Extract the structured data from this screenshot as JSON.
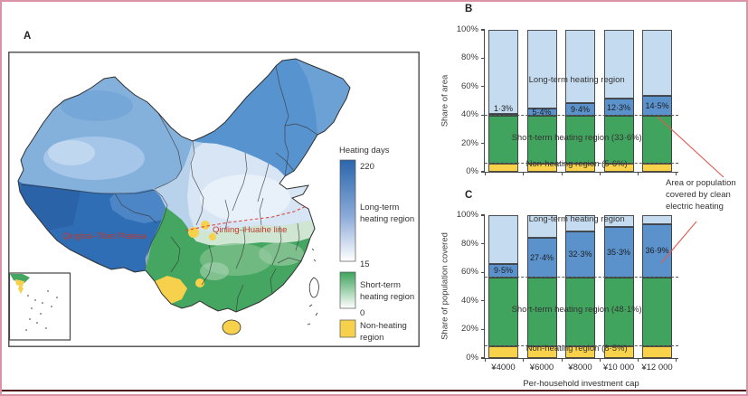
{
  "panels": {
    "a": "A",
    "b": "B",
    "c": "C"
  },
  "map": {
    "labels": {
      "plateau": "Qinghai–Tibet Plateau",
      "qinling": "Qinling–Huaihe line"
    },
    "legend": {
      "title": "Heating days",
      "scale_max": "220",
      "scale_mid": "15",
      "scale_min": "0",
      "long_term": [
        "Long-term",
        "heating region"
      ],
      "short_term": [
        "Short-term",
        "heating region"
      ],
      "non_heating": [
        "Non-heating",
        "region"
      ]
    }
  },
  "annotation": [
    "Area or population",
    "covered by clean",
    "electric heating"
  ],
  "x_axis_title": "Per-household investment cap",
  "colors": {
    "light_blue": "#c5dbf0",
    "mid_blue": "#5b92cc",
    "green": "#41a45e",
    "yellow": "#f8d24b",
    "annotation_red": "#e4584f",
    "map_label_red": "#c0392b",
    "border_pink": "#da93a6",
    "bottom_rule": "#4d151a"
  },
  "chart_data": [
    {
      "id": "B",
      "type": "stacked_bar",
      "panel_label": "B",
      "ylabel": "Share of area",
      "categories": [
        "¥4000",
        "¥6000",
        "¥8000",
        "¥10 000",
        "¥12 000"
      ],
      "show_x_labels": false,
      "y_ticks": [
        "0%",
        "20%",
        "40%",
        "60%",
        "80%",
        "100%"
      ],
      "ylim": [
        0,
        100
      ],
      "series": [
        {
          "name": "Non-heating region",
          "color": "#f8d24b",
          "values": [
            5.6,
            5.6,
            5.6,
            5.6,
            5.6
          ]
        },
        {
          "name": "Short-term heating region",
          "color": "#41a45e",
          "values": [
            33.6,
            33.6,
            33.6,
            33.6,
            33.6
          ]
        },
        {
          "name": "Area covered by clean electric heating",
          "color": "#5b92cc",
          "values": [
            1.3,
            5.4,
            9.4,
            12.3,
            14.5
          ],
          "value_labels": [
            "1·3%",
            "5·4%",
            "9·4%",
            "12·3%",
            "14·5%"
          ]
        },
        {
          "name": "Long-term heating region (remainder)",
          "color": "#c5dbf0",
          "values": [
            59.5,
            55.4,
            51.4,
            48.5,
            46.3
          ]
        }
      ],
      "dashed_lines": [
        5.6,
        39.2
      ],
      "region_labels": [
        {
          "text": "Long-term heating region",
          "y": 62
        },
        {
          "text": "Short-term heating region (33·6%)",
          "y": 21
        },
        {
          "text": "Non-heating region (5·6%)",
          "y": 2.6
        }
      ]
    },
    {
      "id": "C",
      "type": "stacked_bar",
      "panel_label": "C",
      "ylabel": "Share of population covered",
      "categories": [
        "¥4000",
        "¥6000",
        "¥8000",
        "¥10 000",
        "¥12 000"
      ],
      "show_x_labels": true,
      "y_ticks": [
        "0%",
        "20%",
        "40%",
        "60%",
        "80%",
        "100%"
      ],
      "ylim": [
        0,
        100
      ],
      "series": [
        {
          "name": "Non-heating region",
          "color": "#f8d24b",
          "values": [
            8.5,
            8.5,
            8.5,
            8.5,
            8.5
          ]
        },
        {
          "name": "Short-term heating region",
          "color": "#41a45e",
          "values": [
            48.1,
            48.1,
            48.1,
            48.1,
            48.1
          ]
        },
        {
          "name": "Population covered by clean electric heating",
          "color": "#5b92cc",
          "values": [
            9.5,
            27.4,
            32.3,
            35.3,
            36.9
          ],
          "value_labels": [
            "9·5%",
            "27·4%",
            "32·3%",
            "35·3%",
            "36·9%"
          ]
        },
        {
          "name": "Long-term heating region (remainder)",
          "color": "#c5dbf0",
          "values": [
            33.9,
            16.0,
            11.1,
            8.1,
            6.5
          ]
        }
      ],
      "dashed_lines": [
        8.5,
        56.6
      ],
      "region_labels": [
        {
          "text": "Long-term heating region",
          "y": 94.5
        },
        {
          "text": "Short-term heating region (48·1%)",
          "y": 31
        },
        {
          "text": "Non-heating region (8·5%)",
          "y": 3.6
        }
      ]
    }
  ]
}
